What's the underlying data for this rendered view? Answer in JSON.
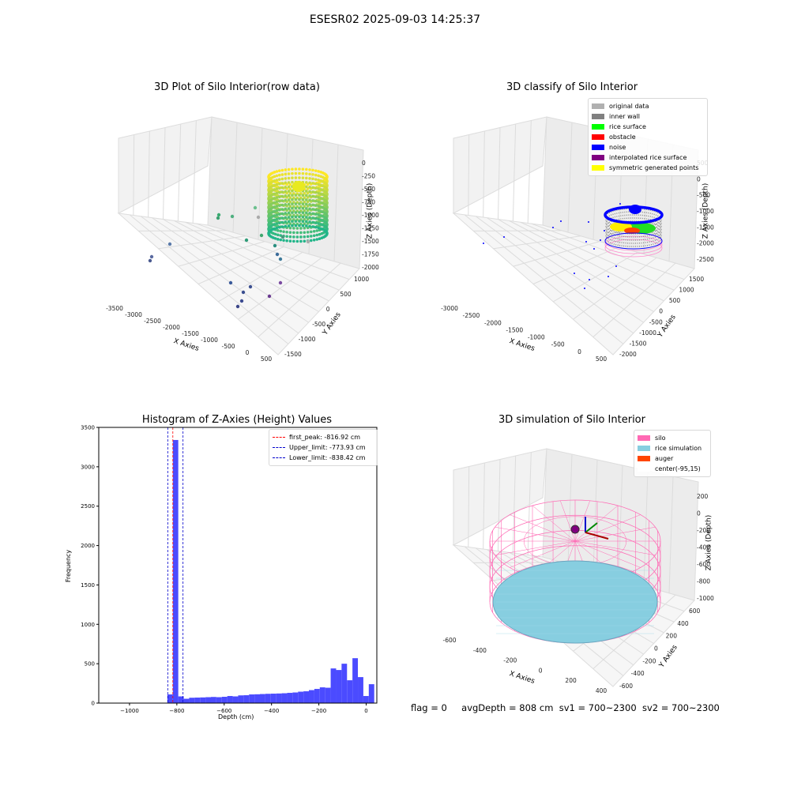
{
  "suptitle": "ESESR02 2025-09-03 14:25:37",
  "status": {
    "flag": "flag = 0",
    "avg": "avgDepth = 808 cm",
    "sv1": "sv1 = 700~2300",
    "sv2": "sv2 = 700~2300"
  },
  "colors": {
    "hist_bar": "#4b4bff",
    "peak_line": "#ff0000",
    "limit_line": "#0000cc",
    "silo": "#ff69b4",
    "rice": "#87cee0",
    "auger": "#ff4500",
    "noise": "#0000ff",
    "inner_wall": "#808080"
  },
  "chart_data": [
    {
      "type": "scatter",
      "title": "3D Plot of Silo Interior(row data)",
      "xlabel": "X Axies",
      "ylabel": "Y Axies",
      "zlabel": "Z Axies (Depth)",
      "xticks": [
        "-3500",
        "-3000",
        "-2500",
        "-2000",
        "-1500",
        "-1000",
        "-500",
        "0",
        "500"
      ],
      "yticks": [
        "-1500",
        "-1000",
        "-500",
        "0",
        "500",
        "1000"
      ],
      "zticks": [
        "0",
        "-250",
        "-500",
        "-750",
        "-1000",
        "-1250",
        "-1500",
        "-1750",
        "-2000"
      ],
      "colormap": "viridis"
    },
    {
      "type": "scatter",
      "title": "3D classify of Silo Interior",
      "xlabel": "X Axies",
      "ylabel": "Y Axies",
      "zlabel": "Z Axies (Depth)",
      "xticks": [
        "-3000",
        "-2500",
        "-2000",
        "-1500",
        "-1000",
        "-500",
        "0",
        "500"
      ],
      "yticks": [
        "-2000",
        "-1500",
        "-1000",
        "-500",
        "0",
        "500",
        "1000",
        "1500"
      ],
      "zticks": [
        "500",
        "0",
        "-500",
        "-1000",
        "-1500",
        "-2000",
        "-2500"
      ],
      "legend": [
        {
          "label": "original data",
          "color": "#b0b0b0"
        },
        {
          "label": "inner wall",
          "color": "#808080"
        },
        {
          "label": "rice surface",
          "color": "#00ff00"
        },
        {
          "label": "obstacle",
          "color": "#ff0000"
        },
        {
          "label": "noise",
          "color": "#0000ff"
        },
        {
          "label": "interpolated rice surface",
          "color": "#800080"
        },
        {
          "label": "symmetric generated points",
          "color": "#ffff00"
        }
      ]
    },
    {
      "type": "bar",
      "title": "Histogram of Z-Axies (Height) Values",
      "xlabel": "Depth (cm)",
      "ylabel": "Frequency",
      "xlim": [
        -1130,
        45
      ],
      "ylim": [
        0,
        3500
      ],
      "xticks": [
        -1000,
        -800,
        -600,
        -400,
        -200,
        0
      ],
      "yticks": [
        0,
        500,
        1000,
        1500,
        2000,
        2500,
        3000,
        3500
      ],
      "bin_width": 23,
      "bins": [
        {
          "x": -851,
          "y": 5
        },
        {
          "x": -840,
          "y": 110
        },
        {
          "x": -817,
          "y": 3340
        },
        {
          "x": -794,
          "y": 85
        },
        {
          "x": -771,
          "y": 55
        },
        {
          "x": -748,
          "y": 68
        },
        {
          "x": -725,
          "y": 70
        },
        {
          "x": -702,
          "y": 72
        },
        {
          "x": -679,
          "y": 75
        },
        {
          "x": -656,
          "y": 78
        },
        {
          "x": -633,
          "y": 75
        },
        {
          "x": -610,
          "y": 80
        },
        {
          "x": -587,
          "y": 90
        },
        {
          "x": -564,
          "y": 85
        },
        {
          "x": -541,
          "y": 98
        },
        {
          "x": -518,
          "y": 100
        },
        {
          "x": -495,
          "y": 110
        },
        {
          "x": -472,
          "y": 112
        },
        {
          "x": -449,
          "y": 115
        },
        {
          "x": -426,
          "y": 118
        },
        {
          "x": -403,
          "y": 120
        },
        {
          "x": -380,
          "y": 122
        },
        {
          "x": -357,
          "y": 125
        },
        {
          "x": -334,
          "y": 130
        },
        {
          "x": -311,
          "y": 135
        },
        {
          "x": -288,
          "y": 145
        },
        {
          "x": -265,
          "y": 150
        },
        {
          "x": -242,
          "y": 165
        },
        {
          "x": -219,
          "y": 180
        },
        {
          "x": -196,
          "y": 200
        },
        {
          "x": -173,
          "y": 195
        },
        {
          "x": -150,
          "y": 440
        },
        {
          "x": -127,
          "y": 420
        },
        {
          "x": -104,
          "y": 500
        },
        {
          "x": -81,
          "y": 290
        },
        {
          "x": -58,
          "y": 570
        },
        {
          "x": -35,
          "y": 330
        },
        {
          "x": -12,
          "y": 90
        },
        {
          "x": 11,
          "y": 240
        }
      ],
      "vlines": [
        {
          "label": "first_peak: -816.92 cm",
          "x": -816.92,
          "color": "#ff0000"
        },
        {
          "label": "Upper_limit: -773.93 cm",
          "x": -773.93,
          "color": "#0000cc"
        },
        {
          "label": "Lower_limit: -838.42 cm",
          "x": -838.42,
          "color": "#0000cc"
        }
      ]
    },
    {
      "type": "scatter",
      "title": "3D simulation of Silo Interior",
      "xlabel": "X Axies",
      "ylabel": "Y Axies",
      "zlabel": "Z Axies (Depth)",
      "xticks": [
        "-600",
        "-400",
        "-200",
        "0",
        "200",
        "400"
      ],
      "yticks": [
        "-600",
        "-400",
        "-200",
        "0",
        "200",
        "400",
        "600"
      ],
      "zticks": [
        "200",
        "0",
        "-200",
        "-400",
        "-600",
        "-800",
        "-1000"
      ],
      "legend": [
        {
          "label": "silo",
          "color": "#ff69b4"
        },
        {
          "label": "rice simulation",
          "color": "#87cee0"
        },
        {
          "label": "auger",
          "color": "#ff4500"
        },
        {
          "label": "center(-95,15)",
          "color": "#ffffff"
        }
      ]
    }
  ]
}
